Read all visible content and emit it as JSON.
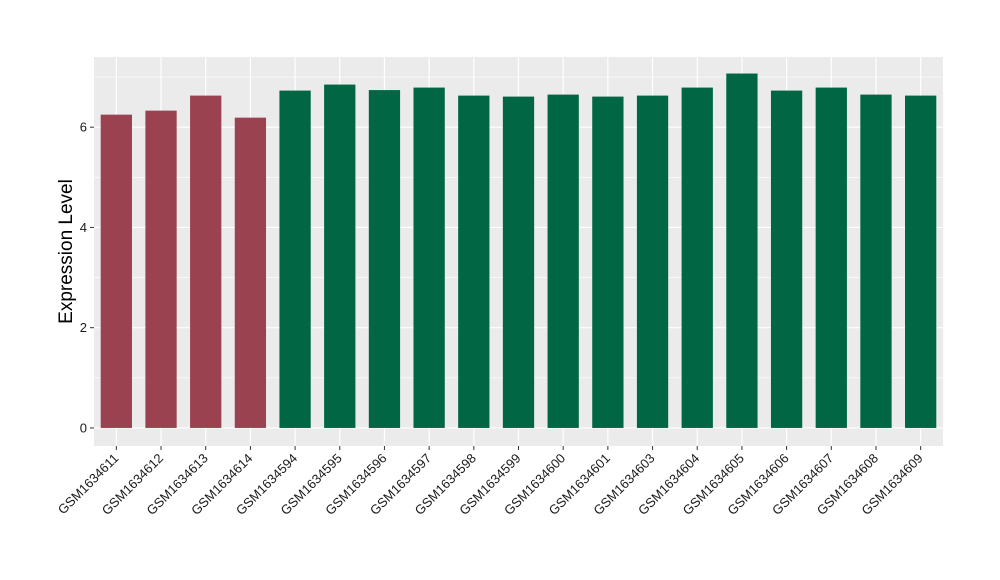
{
  "chart_data": {
    "type": "bar",
    "title": "",
    "xlabel": "",
    "ylabel": "Expression Level",
    "ylim": [
      -0.36,
      7.4
    ],
    "yticks": [
      0,
      2,
      4,
      6
    ],
    "grid": true,
    "legend": "none",
    "categories": [
      "GSM1634611",
      "GSM1634612",
      "GSM1634613",
      "GSM1634614",
      "GSM1634594",
      "GSM1634595",
      "GSM1634596",
      "GSM1634597",
      "GSM1634598",
      "GSM1634599",
      "GSM1634600",
      "GSM1634601",
      "GSM1634603",
      "GSM1634604",
      "GSM1634605",
      "GSM1634606",
      "GSM1634607",
      "GSM1634608",
      "GSM1634609"
    ],
    "values": [
      6.25,
      6.33,
      6.63,
      6.19,
      6.73,
      6.85,
      6.74,
      6.79,
      6.63,
      6.61,
      6.65,
      6.61,
      6.63,
      6.79,
      7.07,
      6.73,
      6.79,
      6.65,
      6.63
    ],
    "groups": [
      "a",
      "a",
      "a",
      "a",
      "b",
      "b",
      "b",
      "b",
      "b",
      "b",
      "b",
      "b",
      "b",
      "b",
      "b",
      "b",
      "b",
      "b",
      "b"
    ],
    "group_colors": {
      "a": "#9b4250",
      "b": "#006644"
    },
    "panel_color": "#ebebeb",
    "gridline_color": "#ffffff"
  }
}
